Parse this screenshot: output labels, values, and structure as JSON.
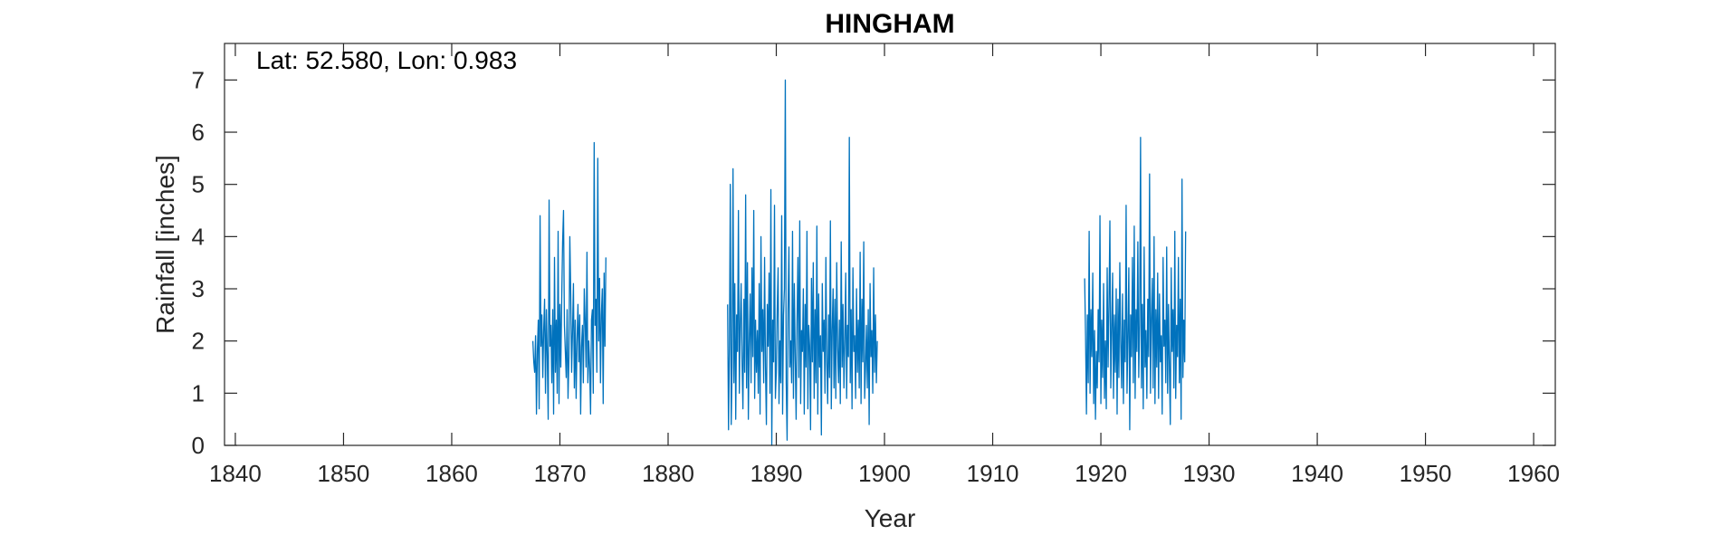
{
  "chart_data": {
    "type": "line",
    "title": "HINGHAM",
    "xlabel": "Year",
    "ylabel": "Rainfall [inches]",
    "annotation": "Lat: 52.580, Lon: 0.983",
    "xlim": [
      1839,
      1962
    ],
    "ylim": [
      0,
      7.7
    ],
    "xticks": [
      1840,
      1850,
      1860,
      1870,
      1880,
      1890,
      1900,
      1910,
      1920,
      1930,
      1940,
      1950,
      1960
    ],
    "yticks": [
      0,
      1,
      2,
      3,
      4,
      5,
      6,
      7
    ],
    "grid": false,
    "series_color": "#0072BD",
    "series": [
      {
        "segment_start": 1867.5,
        "values": [
          2.0,
          1.6,
          1.4,
          2.1,
          0.6,
          1.8,
          2.4,
          0.7,
          4.4,
          1.9,
          2.5,
          1.3,
          2.2,
          2.8,
          1.0,
          2.6,
          1.7,
          0.5,
          4.7,
          1.9,
          2.3,
          1.2,
          2.6,
          0.6,
          3.6,
          1.4,
          2.4,
          1.0,
          4.1,
          0.8,
          2.7,
          1.5,
          2.8,
          3.9,
          4.5,
          2.3,
          1.8,
          1.3,
          2.6,
          0.9,
          1.7,
          4.0,
          2.9,
          1.4,
          2.2,
          3.1,
          1.1,
          2.4,
          0.9,
          2.0,
          2.7,
          1.6,
          2.5,
          0.6,
          1.9,
          2.3,
          1.2,
          3.0,
          2.4,
          1.5,
          3.7,
          1.2,
          2.0,
          1.5,
          0.6,
          2.4,
          2.6,
          1.0,
          5.8,
          2.3,
          2.8,
          1.4,
          5.5,
          2.0,
          3.2,
          1.2,
          2.5,
          3.0,
          0.8,
          3.3,
          1.9,
          3.6
        ]
      },
      {
        "segment_start": 1885.5,
        "values": [
          2.7,
          0.3,
          1.9,
          5.0,
          0.4,
          1.5,
          5.3,
          1.2,
          3.1,
          0.5,
          2.5,
          1.8,
          4.5,
          1.0,
          2.3,
          3.1,
          1.6,
          0.7,
          2.8,
          1.4,
          4.8,
          1.1,
          3.5,
          0.5,
          2.0,
          2.9,
          1.2,
          3.4,
          1.7,
          4.5,
          0.9,
          2.4,
          1.4,
          2.2,
          1.0,
          3.1,
          0.6,
          4.0,
          1.8,
          2.6,
          1.2,
          3.6,
          1.5,
          0.4,
          2.7,
          1.9,
          3.3,
          1.0,
          4.9,
          0.0,
          2.4,
          1.6,
          4.6,
          0.9,
          1.4,
          2.6,
          3.4,
          0.8,
          2.0,
          1.2,
          4.4,
          0.6,
          2.5,
          3.0,
          7.0,
          1.2,
          0.1,
          2.6,
          3.8,
          1.5,
          2.0,
          1.2,
          4.1,
          0.9,
          3.1,
          1.7,
          0.5,
          2.4,
          3.6,
          1.3,
          4.3,
          0.8,
          2.2,
          1.8,
          3.0,
          0.6,
          2.7,
          1.5,
          4.1,
          0.7,
          2.3,
          1.9,
          0.3,
          3.2,
          1.6,
          3.5,
          0.9,
          2.6,
          1.2,
          4.2,
          0.6,
          2.9,
          1.5,
          2.1,
          0.2,
          3.1,
          1.8,
          2.4,
          1.0,
          3.6,
          1.6,
          0.8,
          2.5,
          1.3,
          4.3,
          0.7,
          2.2,
          3.0,
          1.1,
          2.8,
          0.9,
          3.5,
          1.9,
          1.2,
          2.4,
          0.8,
          3.9,
          1.5,
          2.7,
          1.1,
          2.0,
          3.3,
          0.9,
          2.3,
          1.7,
          5.9,
          1.2,
          2.6,
          0.7,
          3.4,
          1.8,
          2.1,
          0.9,
          3.0,
          1.4,
          2.4,
          1.1,
          3.7,
          0.8,
          2.8,
          1.6,
          3.9,
          0.9,
          1.5,
          2.3,
          1.1,
          2.6,
          0.4,
          3.1,
          1.7,
          2.2,
          1.0,
          3.4,
          1.4,
          2.5,
          1.2,
          2.0
        ]
      },
      {
        "segment_start": 1918.5,
        "values": [
          3.2,
          2.1,
          0.6,
          2.5,
          1.2,
          4.1,
          1.0,
          2.6,
          1.7,
          3.3,
          0.8,
          2.2,
          0.5,
          1.8,
          1.1,
          2.6,
          1.6,
          4.4,
          0.8,
          2.4,
          1.3,
          3.1,
          0.9,
          2.0,
          0.7,
          3.4,
          1.5,
          2.7,
          4.3,
          1.1,
          2.2,
          3.3,
          0.9,
          2.5,
          1.4,
          3.0,
          0.6,
          2.8,
          1.3,
          3.5,
          2.0,
          1.1,
          2.9,
          0.8,
          2.4,
          1.6,
          4.6,
          1.0,
          2.1,
          3.4,
          0.3,
          2.5,
          1.7,
          3.6,
          1.2,
          4.2,
          0.9,
          2.6,
          1.8,
          3.9,
          1.3,
          2.3,
          5.9,
          1.1,
          2.7,
          0.7,
          3.8,
          1.5,
          2.2,
          0.9,
          2.8,
          1.7,
          5.2,
          1.0,
          2.4,
          3.2,
          1.1,
          4.0,
          0.8,
          2.6,
          1.5,
          3.3,
          0.9,
          2.9,
          1.6,
          2.1,
          0.6,
          3.6,
          1.9,
          2.4,
          1.2,
          3.8,
          1.0,
          2.7,
          1.5,
          0.4,
          3.4,
          1.8,
          2.6,
          1.1,
          4.1,
          0.9,
          2.3,
          1.7,
          3.6,
          1.2,
          2.8,
          0.5,
          5.1,
          1.3,
          2.4,
          1.6,
          4.1
        ]
      }
    ]
  }
}
